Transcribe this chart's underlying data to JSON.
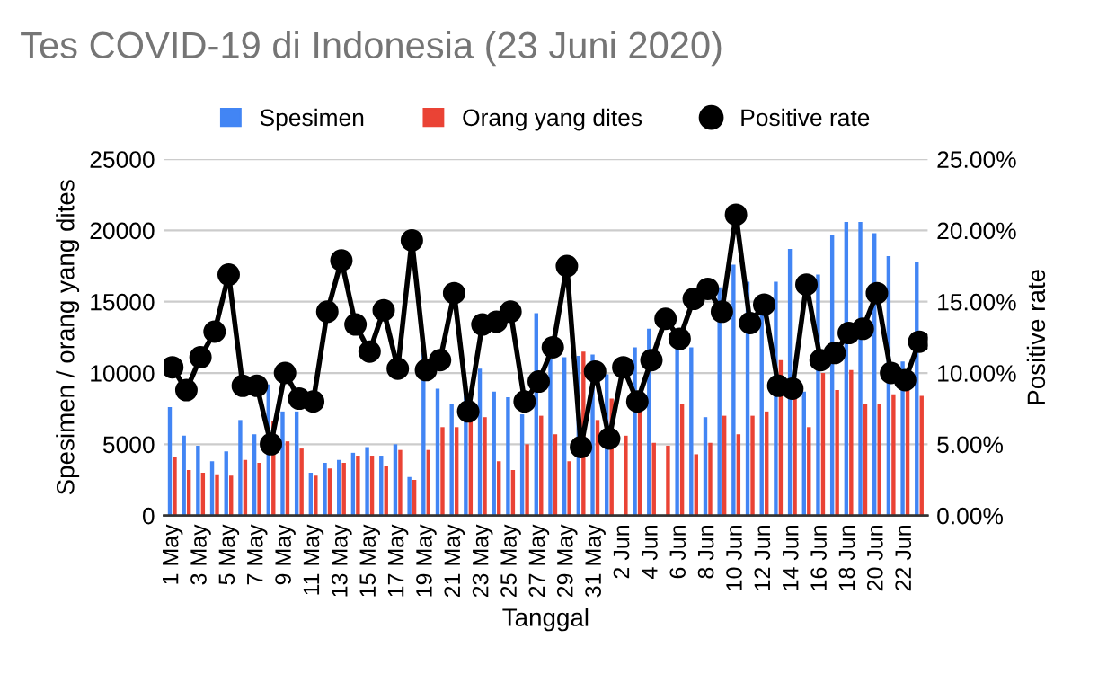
{
  "chart_data": {
    "type": "bar",
    "title": "Tes COVID-19 di Indonesia (23 Juni 2020)",
    "xlabel": "Tanggal",
    "ylabel": "Spesimen / orang yang dites",
    "y2label": "Positive rate",
    "categories": [
      "1 May",
      null,
      "3 May",
      null,
      "5 May",
      null,
      "7 May",
      null,
      "9 May",
      null,
      "11 May",
      null,
      "13 May",
      null,
      "15 May",
      null,
      "17 May",
      null,
      "19 May",
      null,
      "21 May",
      null,
      "23 May",
      null,
      "25 May",
      null,
      "27 May",
      null,
      "29 May",
      null,
      "31 May",
      null,
      "2 Jun",
      null,
      "4 Jun",
      null,
      "6 Jun",
      null,
      "8 Jun",
      null,
      "10 Jun",
      null,
      "12 Jun",
      null,
      "14 Jun",
      null,
      "16 Jun",
      null,
      "18 Jun",
      null,
      "20 Jun",
      null,
      "22 Jun",
      null
    ],
    "series": [
      {
        "name": "Spesimen",
        "color": "#4285f4",
        "values": [
          7600,
          5600,
          4900,
          3800,
          4500,
          6700,
          5700,
          9200,
          7300,
          7300,
          3000,
          3700,
          3900,
          4400,
          4800,
          4200,
          5000,
          2700,
          11400,
          8900,
          7800,
          8500,
          10300,
          8700,
          8300,
          7100,
          14200,
          11000,
          11100,
          11200,
          11300,
          9900,
          null,
          11800,
          13100,
          null,
          12000,
          11800,
          6900,
          16000,
          17600,
          16400,
          14100,
          16400,
          18700,
          8700,
          16900,
          19700,
          20600,
          20600,
          19800,
          18200,
          10800,
          17800
        ]
      },
      {
        "name": "Orang yang dites",
        "color": "#ea4335",
        "values": [
          4100,
          3200,
          3000,
          2900,
          2800,
          3900,
          3700,
          6600,
          5200,
          4700,
          2800,
          3300,
          3700,
          4200,
          4200,
          3500,
          4600,
          2500,
          4600,
          6200,
          6200,
          6800,
          6900,
          3800,
          3200,
          5000,
          7000,
          5700,
          3800,
          11500,
          6700,
          8200,
          5600,
          7500,
          5100,
          4900,
          7800,
          4300,
          5100,
          7000,
          5700,
          7000,
          7300,
          10900,
          8300,
          6200,
          10000,
          8800,
          10200,
          7800,
          7800,
          8500,
          9000,
          8400
        ]
      },
      {
        "name": "Positive rate",
        "type": "line",
        "axis": "y2",
        "color": "#000000",
        "marker": "circle",
        "values": [
          10.4,
          8.8,
          11.1,
          12.9,
          16.9,
          9.1,
          9.1,
          5.0,
          10.0,
          8.2,
          8.0,
          14.3,
          17.9,
          13.4,
          11.5,
          14.4,
          10.3,
          19.3,
          10.2,
          10.9,
          15.6,
          7.3,
          13.4,
          13.6,
          14.3,
          8.0,
          9.4,
          11.8,
          17.5,
          4.8,
          10.1,
          5.4,
          10.4,
          8.0,
          10.9,
          13.8,
          12.4,
          15.2,
          15.9,
          14.3,
          21.1,
          13.5,
          14.8,
          9.1,
          8.9,
          16.2,
          10.9,
          11.4,
          12.8,
          13.1,
          15.6,
          10.0,
          9.5,
          12.2
        ]
      }
    ],
    "ylim": [
      0,
      25000
    ],
    "yticks": [
      0,
      5000,
      10000,
      15000,
      20000,
      25000
    ],
    "y2lim": [
      0,
      25
    ],
    "y2ticks": [
      {
        "value": 0,
        "label": "0.00%"
      },
      {
        "value": 5,
        "label": "5.00%"
      },
      {
        "value": 10,
        "label": "10.00%"
      },
      {
        "value": 15,
        "label": "15.00%"
      },
      {
        "value": 20,
        "label": "20.00%"
      },
      {
        "value": 25,
        "label": "25.00%"
      }
    ],
    "grid": "y",
    "legend": "top"
  }
}
